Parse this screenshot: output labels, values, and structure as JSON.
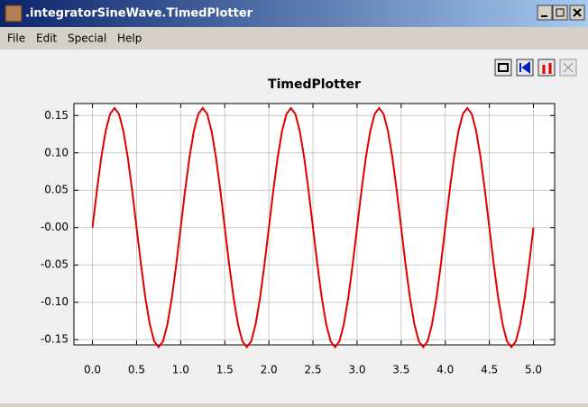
{
  "window": {
    "title": ".integratorSineWave.TimedPlotter",
    "menu": [
      "File",
      "Edit",
      "Special",
      "Help"
    ]
  },
  "chart_data": {
    "type": "line",
    "title": "TimedPlotter",
    "x": [
      0,
      0.05,
      0.1,
      0.15,
      0.2,
      0.25,
      0.3,
      0.35,
      0.4,
      0.45,
      0.5,
      0.55,
      0.6,
      0.65,
      0.7,
      0.75,
      0.8,
      0.85,
      0.9,
      0.95,
      1,
      1.05,
      1.1,
      1.15,
      1.2,
      1.25,
      1.3,
      1.35,
      1.4,
      1.45,
      1.5,
      1.55,
      1.6,
      1.65,
      1.7,
      1.75,
      1.8,
      1.85,
      1.9,
      1.95,
      2,
      2.05,
      2.1,
      2.15,
      2.2,
      2.25,
      2.3,
      2.35,
      2.4,
      2.45,
      2.5,
      2.55,
      2.6,
      2.65,
      2.7,
      2.75,
      2.8,
      2.85,
      2.9,
      2.95,
      3,
      3.05,
      3.1,
      3.15,
      3.2,
      3.25,
      3.3,
      3.35,
      3.4,
      3.45,
      3.5,
      3.55,
      3.6,
      3.65,
      3.7,
      3.75,
      3.8,
      3.85,
      3.9,
      3.95,
      4,
      4.05,
      4.1,
      4.15,
      4.2,
      4.25,
      4.3,
      4.35,
      4.4,
      4.45,
      4.5,
      4.55,
      4.6,
      4.65,
      4.7,
      4.75,
      4.8,
      4.85,
      4.9,
      4.95,
      5
    ],
    "series": [
      {
        "color": "#e00000",
        "values": [
          0,
          0.0494,
          0.0941,
          0.1294,
          0.1522,
          0.16,
          0.1522,
          0.1294,
          0.0941,
          0.0494,
          0,
          -0.0494,
          -0.0941,
          -0.1294,
          -0.1522,
          -0.16,
          -0.1522,
          -0.1294,
          -0.0941,
          -0.0494,
          0,
          0.0494,
          0.0941,
          0.1294,
          0.1522,
          0.16,
          0.1522,
          0.1294,
          0.0941,
          0.0494,
          0,
          -0.0494,
          -0.0941,
          -0.1294,
          -0.1522,
          -0.16,
          -0.1522,
          -0.1294,
          -0.0941,
          -0.0494,
          0,
          0.0494,
          0.0941,
          0.1294,
          0.1522,
          0.16,
          0.1522,
          0.1294,
          0.0941,
          0.0494,
          0,
          -0.0494,
          -0.0941,
          -0.1294,
          -0.1522,
          -0.16,
          -0.1522,
          -0.1294,
          -0.0941,
          -0.0494,
          0,
          0.0494,
          0.0941,
          0.1294,
          0.1522,
          0.16,
          0.1522,
          0.1294,
          0.0941,
          0.0494,
          0,
          -0.0494,
          -0.0941,
          -0.1294,
          -0.1522,
          -0.16,
          -0.1522,
          -0.1294,
          -0.0941,
          -0.0494,
          0,
          0.0494,
          0.0941,
          0.1294,
          0.1522,
          0.16,
          0.1522,
          0.1294,
          0.0941,
          0.0494,
          0,
          -0.0494,
          -0.0941,
          -0.1294,
          -0.1522,
          -0.16,
          -0.1522,
          -0.1294,
          -0.0941,
          -0.0494,
          0
        ]
      }
    ],
    "xlim": [
      -0.21,
      5.24
    ],
    "ylim": [
      -0.157,
      0.166
    ],
    "xticks": [
      {
        "value": 0,
        "label": "0.0"
      },
      0.5,
      {
        "value": 1,
        "label": "1.0"
      },
      1.5,
      {
        "value": 2,
        "label": "2.0"
      },
      2.5,
      {
        "value": 3,
        "label": "3.0"
      },
      3.5,
      {
        "value": 4,
        "label": "4.0"
      },
      4.5,
      {
        "value": 5,
        "label": "5.0"
      }
    ],
    "yticks": [
      0.15,
      {
        "value": 0.1,
        "label": "0.10"
      },
      0.05,
      {
        "value": 0,
        "label": "-0.00"
      },
      -0.05,
      {
        "value": -0.1,
        "label": "-0.10"
      },
      -0.15
    ],
    "grid": true
  }
}
